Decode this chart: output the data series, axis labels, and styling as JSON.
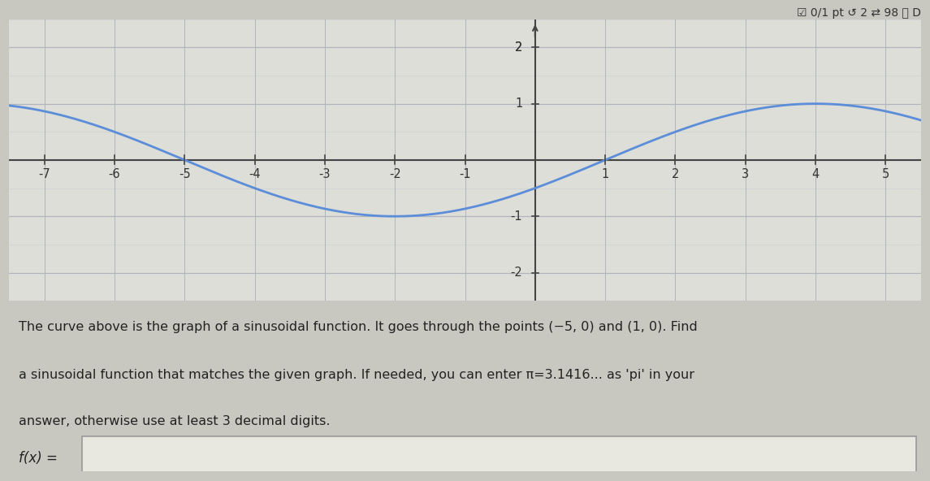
{
  "curve_color": "#5b8dd9",
  "bg_color": "#c8c8c0",
  "plot_bg_color": "#deded8",
  "grid_major_color": "#b0b4bc",
  "grid_minor_color": "#c8ccd4",
  "axis_color": "#444444",
  "tick_color": "#333333",
  "amplitude": 1,
  "period": 12,
  "zero1": -5,
  "zero2": 1,
  "x_min": -7.5,
  "x_max": 5.5,
  "y_min": -2.5,
  "y_max": 2.5,
  "x_ticks": [
    -7,
    -6,
    -5,
    -4,
    -3,
    -2,
    -1,
    1,
    2,
    3,
    4,
    5
  ],
  "y_ticks": [
    -2,
    -1,
    1,
    2
  ],
  "text_line1": "The curve above is the graph of a sinusoidal function. It goes through the points (−5, 0) and (1, 0). Find",
  "text_line2": "a sinusoidal function that matches the given graph. If needed, you can enter π=3.1416... as 'pi' in your",
  "text_line3": "answer, otherwise use at least 3 decimal digits.",
  "label_text": "f(x) =",
  "header_text": "☑ 0/1 pt ↺ 2 ⇄ 98 ⓘ D",
  "input_box_color": "#e8e8e0",
  "input_box_border": "#999999",
  "text_color": "#222222",
  "header_color": "#333333",
  "curve_linewidth": 2.0
}
